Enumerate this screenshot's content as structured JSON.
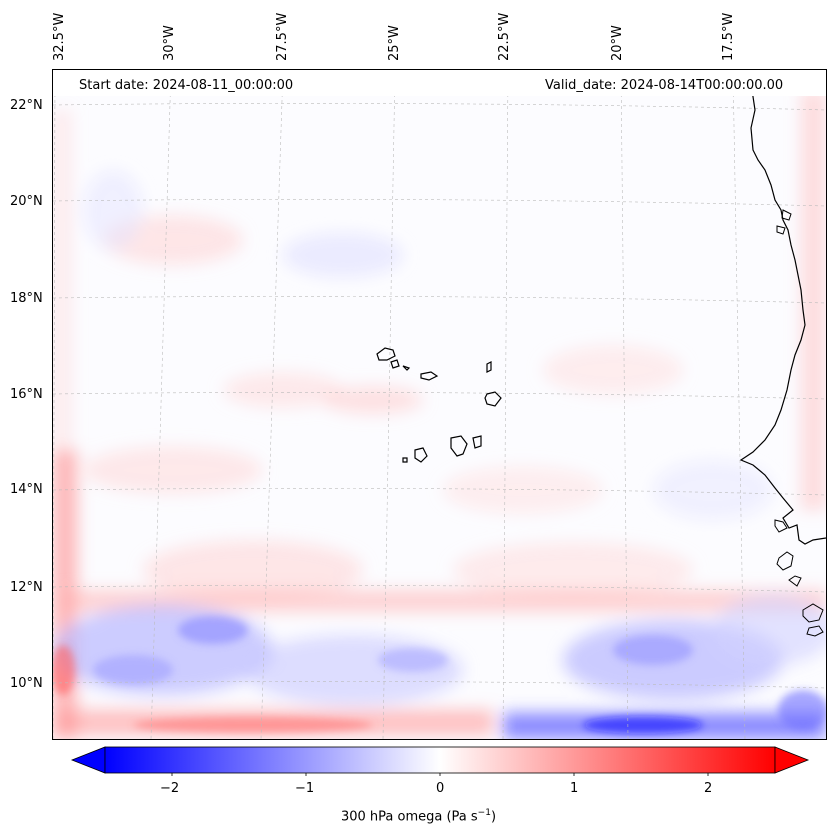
{
  "header": {
    "start_date": "Start date: 2024-08-11_00:00:00",
    "valid_date": "Valid_date: 2024-08-14T00:00:00.00"
  },
  "axes": {
    "longitude_labels": [
      "32.5°W",
      "30°W",
      "27.5°W",
      "25°W",
      "22.5°W",
      "20°W",
      "17.5°W"
    ],
    "latitude_labels": [
      "22°N",
      "20°N",
      "18°N",
      "16°N",
      "14°N",
      "12°N",
      "10°N"
    ]
  },
  "colorbar": {
    "label_main": "300 hPa omega (Pa s",
    "label_sup": "−1",
    "label_end": ")",
    "ticks": [
      "−2",
      "−1",
      "0",
      "1",
      "2"
    ],
    "range": [
      -2.6,
      2.6
    ],
    "colormap": "bwr",
    "extend": "both"
  },
  "colors": {
    "negative": "#0000ff",
    "neutral": "#ffffff",
    "positive": "#ff0000",
    "coastline": "#000000",
    "gridline": "#bbbbbb"
  }
}
